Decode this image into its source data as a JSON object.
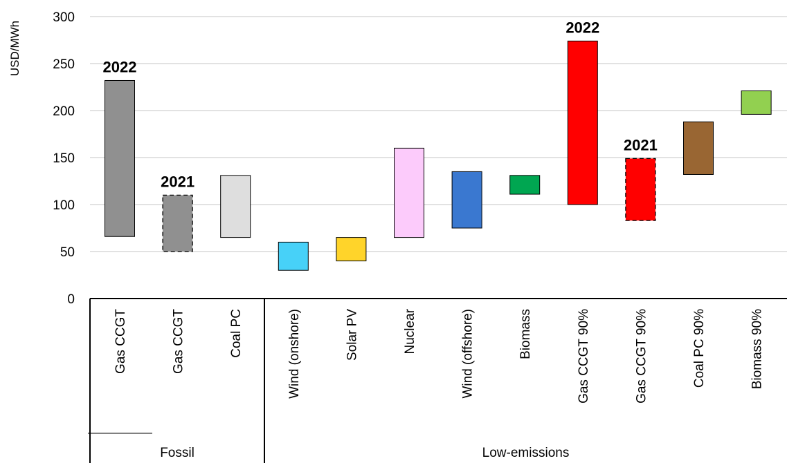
{
  "chart_data": {
    "type": "floating-bar",
    "ylabel": "USD/MWh",
    "ylim": [
      0,
      300
    ],
    "yticks": [
      0,
      50,
      100,
      150,
      200,
      250,
      300
    ],
    "grid": "horizontal",
    "categories": [
      "Gas CCGT",
      "Gas CCGT",
      "Coal PC",
      "Wind (onshore)",
      "Solar PV",
      "Nuclear",
      "Wind (offshore)",
      "Biomass",
      "Gas CCGT 90%",
      "Gas CCGT 90%",
      "Coal PC 90%",
      "Biomass 90%"
    ],
    "groups": [
      {
        "label": "Fossil",
        "count": 3
      },
      {
        "label": "Low-emissions",
        "count": 9
      }
    ],
    "bars": [
      {
        "low": 66,
        "high": 232,
        "color": "#909090",
        "dashed": false,
        "annotation": "2022"
      },
      {
        "low": 50,
        "high": 110,
        "color": "#909090",
        "dashed": true,
        "annotation": "2021"
      },
      {
        "low": 65,
        "high": 131,
        "color": "#dedede",
        "dashed": false,
        "annotation": ""
      },
      {
        "low": 30,
        "high": 60,
        "color": "#47d1f8",
        "dashed": false,
        "annotation": ""
      },
      {
        "low": 40,
        "high": 65,
        "color": "#ffd42a",
        "dashed": false,
        "annotation": ""
      },
      {
        "low": 65,
        "high": 160,
        "color": "#fccbfb",
        "dashed": false,
        "annotation": ""
      },
      {
        "low": 75,
        "high": 135,
        "color": "#3a78d0",
        "dashed": false,
        "annotation": ""
      },
      {
        "low": 111,
        "high": 131,
        "color": "#00a651",
        "dashed": false,
        "annotation": ""
      },
      {
        "low": 100,
        "high": 274,
        "color": "#ff0000",
        "dashed": false,
        "annotation": "2022"
      },
      {
        "low": 83,
        "high": 149,
        "color": "#ff0000",
        "dashed": true,
        "annotation": "2021"
      },
      {
        "low": 132,
        "high": 188,
        "color": "#996633",
        "dashed": false,
        "annotation": ""
      },
      {
        "low": 196,
        "high": 221,
        "color": "#92d050",
        "dashed": false,
        "annotation": ""
      }
    ]
  }
}
